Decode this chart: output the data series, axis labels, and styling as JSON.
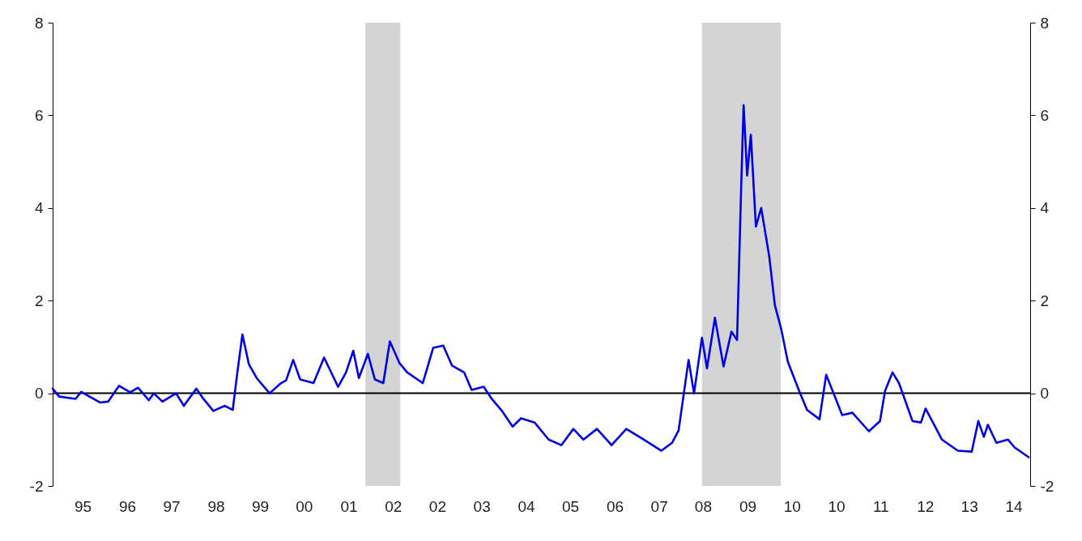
{
  "chart_data": {
    "type": "line",
    "x": [
      "1995-03-13",
      "1995-04-29",
      "1995-08-28",
      "1995-10-08",
      "1996-02-25",
      "1996-04-22",
      "1996-07-11",
      "1996-10-01",
      "1996-11-28",
      "1997-02-14",
      "1997-03-23",
      "1997-05-25",
      "1997-09-02",
      "1997-10-29",
      "1998-01-29",
      "1998-03-16",
      "1998-06-02",
      "1998-08-25",
      "1998-10-22",
      "1998-11-25",
      "1999-01-01",
      "1999-02-17",
      "1999-04-15",
      "1999-07-19",
      "1999-10-11",
      "1999-11-17",
      "2000-01-08",
      "2000-02-28",
      "2000-06-05",
      "2000-08-21",
      "2000-12-02",
      "2001-01-29",
      "2001-03-23",
      "2001-05-03",
      "2001-07-08",
      "2001-08-28",
      "2001-10-29",
      "2001-12-16",
      "2002-02-25",
      "2002-04-22",
      "2002-08-14",
      "2002-10-29",
      "2003-01-11",
      "2003-03-16",
      "2003-06-13",
      "2003-08-07",
      "2003-11-03",
      "2004-01-01",
      "2004-03-16",
      "2004-06-02",
      "2004-08-03",
      "2004-11-10",
      "2005-02-21",
      "2005-05-25",
      "2005-08-21",
      "2005-11-03",
      "2006-02-10",
      "2006-05-28",
      "2006-09-13",
      "2007-01-08",
      "2007-05-28",
      "2007-08-14",
      "2007-10-01",
      "2007-12-13",
      "2008-01-22",
      "2008-03-20",
      "2008-04-26",
      "2008-06-23",
      "2008-08-25",
      "2008-10-22",
      "2008-12-02",
      "2009-01-01",
      "2009-01-19",
      "2009-02-14",
      "2009-03-13",
      "2009-04-19",
      "2009-05-28",
      "2009-07-26",
      "2009-09-05",
      "2009-10-22",
      "2009-12-09",
      "2010-03-02",
      "2010-04-29",
      "2010-07-29",
      "2010-09-16",
      "2011-01-11",
      "2011-03-27",
      "2011-07-26",
      "2011-10-15",
      "2011-11-21",
      "2012-01-15",
      "2012-03-02",
      "2012-06-09",
      "2012-08-10",
      "2012-09-13",
      "2013-01-11",
      "2013-05-07",
      "2013-08-17",
      "2013-10-04",
      "2013-11-14",
      "2013-12-13",
      "2014-02-14",
      "2014-05-10",
      "2014-06-27",
      "2014-10-08"
    ],
    "series": [
      {
        "color": "#0000e6",
        "values": [
          0.1,
          -0.07,
          -0.12,
          0.03,
          -0.2,
          -0.18,
          0.16,
          0.02,
          0.12,
          -0.15,
          0.0,
          -0.18,
          0.0,
          -0.27,
          0.1,
          -0.1,
          -0.38,
          -0.27,
          -0.36,
          0.45,
          1.27,
          0.63,
          0.33,
          0.0,
          0.22,
          0.28,
          0.72,
          0.3,
          0.22,
          0.77,
          0.14,
          0.45,
          0.92,
          0.33,
          0.85,
          0.3,
          0.22,
          1.12,
          0.65,
          0.45,
          0.22,
          0.98,
          1.03,
          0.6,
          0.45,
          0.07,
          0.14,
          -0.12,
          -0.38,
          -0.72,
          -0.54,
          -0.63,
          -1.0,
          -1.12,
          -0.77,
          -1.0,
          -0.77,
          -1.12,
          -0.77,
          -0.98,
          -1.24,
          -1.07,
          -0.8,
          0.72,
          0.0,
          1.2,
          0.54,
          1.63,
          0.58,
          1.33,
          1.15,
          4.42,
          6.22,
          4.7,
          5.58,
          3.6,
          4.0,
          2.95,
          1.9,
          1.38,
          0.68,
          0.05,
          -0.36,
          -0.56,
          0.4,
          -0.47,
          -0.42,
          -0.82,
          -0.6,
          0.05,
          0.45,
          0.22,
          -0.6,
          -0.63,
          -0.33,
          -1.0,
          -1.24,
          -1.26,
          -0.6,
          -0.94,
          -0.68,
          -1.07,
          -1.0,
          -1.17,
          -1.38
        ]
      }
    ],
    "xlim": [
      "1995-03-13",
      "2014-10-19"
    ],
    "xticks": [
      {
        "value": "1995-10-19",
        "label": "95"
      },
      {
        "value": "1996-09-09",
        "label": "96"
      },
      {
        "value": "1997-07-29",
        "label": "97"
      },
      {
        "value": "1998-06-20",
        "label": "98"
      },
      {
        "value": "1999-05-10",
        "label": "99"
      },
      {
        "value": "2000-03-27",
        "label": "00"
      },
      {
        "value": "2001-02-17",
        "label": "01"
      },
      {
        "value": "2002-01-08",
        "label": "02"
      },
      {
        "value": "2002-11-28",
        "label": "02"
      },
      {
        "value": "2003-10-19",
        "label": "03"
      },
      {
        "value": "2004-09-09",
        "label": "04"
      },
      {
        "value": "2005-07-29",
        "label": "05"
      },
      {
        "value": "2006-06-20",
        "label": "06"
      },
      {
        "value": "2007-05-10",
        "label": "07"
      },
      {
        "value": "2008-03-27",
        "label": "08"
      },
      {
        "value": "2009-02-17",
        "label": "09"
      },
      {
        "value": "2010-01-08",
        "label": "10"
      },
      {
        "value": "2010-11-28",
        "label": "10"
      },
      {
        "value": "2011-10-19",
        "label": "11"
      },
      {
        "value": "2012-09-09",
        "label": "12"
      },
      {
        "value": "2013-07-29",
        "label": "13"
      },
      {
        "value": "2014-06-20",
        "label": "14"
      }
    ],
    "ylim": [
      -2,
      8
    ],
    "yticks": [
      -2,
      0,
      2,
      4,
      6,
      8
    ],
    "y2lim": [
      -2,
      8
    ],
    "y2ticks": [
      -2,
      0,
      2,
      4,
      6,
      8
    ],
    "bands": [
      {
        "axis": "x",
        "from": "2001-06-20",
        "to": "2002-03-02",
        "color": "#d4d4d4"
      },
      {
        "axis": "x",
        "from": "2008-03-20",
        "to": "2009-10-19",
        "color": "#d4d4d4"
      }
    ],
    "ref_lines": [
      {
        "axis": "y",
        "value": 0,
        "color": "#000000"
      }
    ],
    "grid": false
  }
}
